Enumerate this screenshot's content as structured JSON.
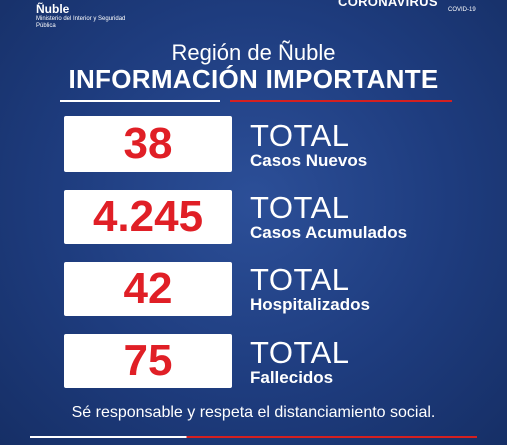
{
  "brand": {
    "logo_name": "Ñuble",
    "logo_subtitle": "Ministerio del Interior y Seguridad Pública",
    "campaign": "CORONAVIRUS",
    "campaign_sub": "COVID-19"
  },
  "header": {
    "region": "Región de Ñuble",
    "headline": "INFORMACIÓN IMPORTANTE"
  },
  "stats": [
    {
      "value": "38",
      "total_label": "TOTAL",
      "description": "Casos Nuevos"
    },
    {
      "value": "4.245",
      "total_label": "TOTAL",
      "description": "Casos Acumulados"
    },
    {
      "value": "42",
      "total_label": "TOTAL",
      "description": "Hospitalizados"
    },
    {
      "value": "75",
      "total_label": "TOTAL",
      "description": "Fallecidos"
    }
  ],
  "footer": {
    "message": "Sé responsable y respeta el distanciamiento social."
  },
  "colors": {
    "background": "#1e3c7e",
    "accent_red": "#e01f26",
    "text": "#ffffff"
  }
}
